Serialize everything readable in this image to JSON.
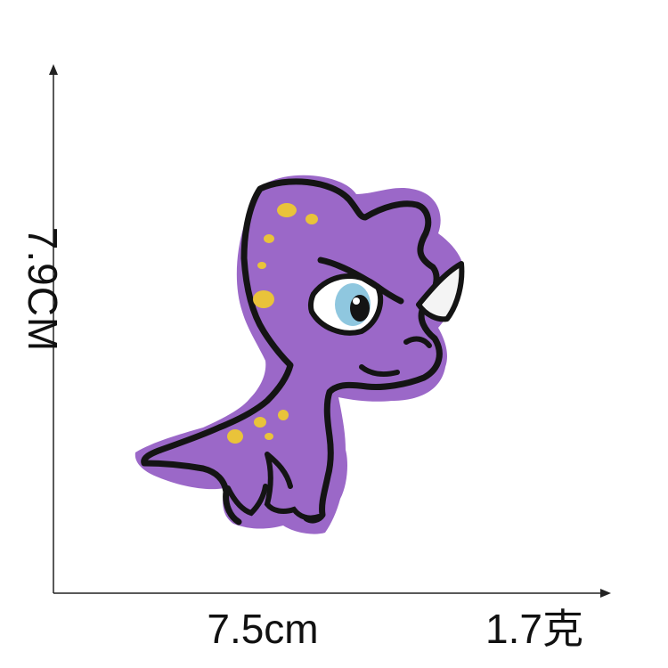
{
  "dimensions": {
    "height_label": "7.9CM",
    "width_label": "7.5cm",
    "weight_label": "1.7克"
  },
  "product": {
    "subject": "purple-dinosaur-embroidered-patch",
    "colors": {
      "felt": "#9b68c8",
      "outline": "#141414",
      "spots": "#e9c33a",
      "horn": "#f4f4f4",
      "eye_iris": "#8fc7df"
    }
  }
}
